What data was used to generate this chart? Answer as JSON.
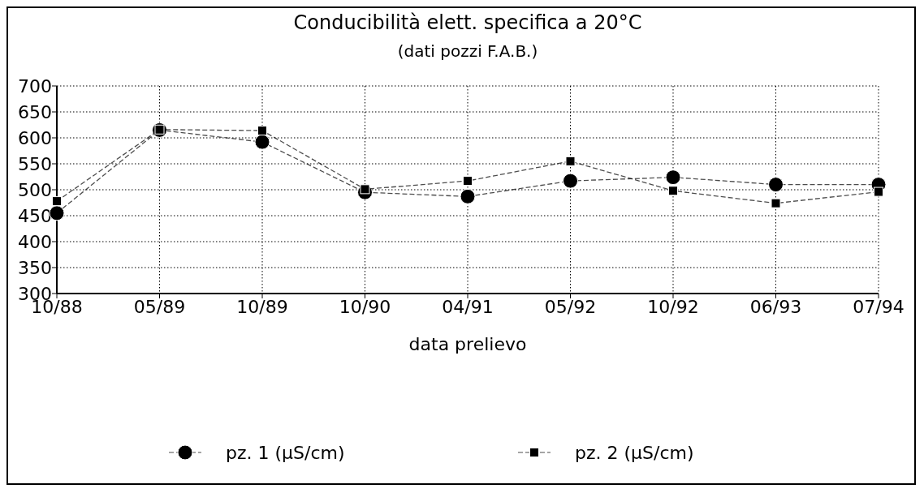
{
  "chart_data": {
    "type": "line",
    "title": "Conducibilità elett. specifica a 20°C",
    "subtitle": "(dati pozzi F.A.B.)",
    "xlabel": "data prelievo",
    "categories": [
      "10/88",
      "05/89",
      "10/89",
      "10/90",
      "04/91",
      "05/92",
      "10/92",
      "06/93",
      "07/94"
    ],
    "series": [
      {
        "name": "pz. 1 (µS/cm)",
        "color": "#000000",
        "marker": "circle",
        "values": [
          455,
          615,
          592,
          495,
          487,
          517,
          524,
          510,
          510
        ]
      },
      {
        "name": "pz. 2 (µS/cm)",
        "color": "#000000",
        "marker": "square",
        "values": [
          478,
          616,
          614,
          501,
          517,
          555,
          498,
          474,
          496
        ]
      }
    ],
    "ylim": [
      300,
      700
    ],
    "yticks": [
      300,
      350,
      400,
      450,
      500,
      550,
      600,
      650,
      700
    ],
    "grid": true,
    "legend": "bottom",
    "line_style": "dashed"
  }
}
